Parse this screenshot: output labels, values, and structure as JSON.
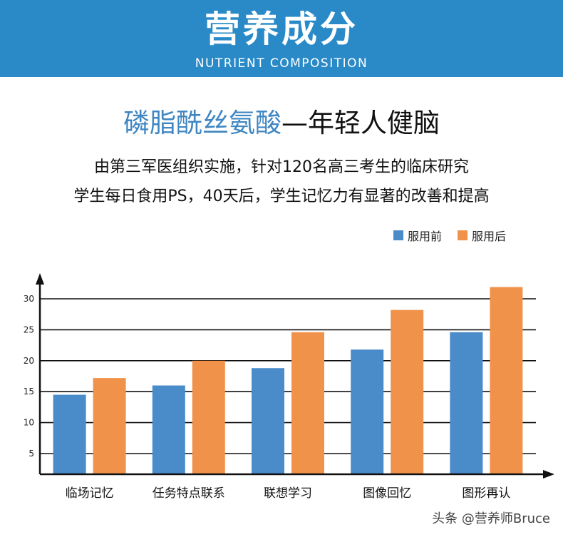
{
  "banner": {
    "title": "营养成分",
    "subtitle": "NUTRIENT COMPOSITION"
  },
  "headline": {
    "highlight": "磷脂酰丝氨酸",
    "rest": "—年轻人健脑"
  },
  "description": {
    "line1": "由第三军医组织实施，针对120名高三考生的临床研究",
    "line2": "学生每日食用PS，40天后，学生记忆力有显著的改善和提高"
  },
  "watermark": "头条 @营养师Bruce",
  "colors": {
    "banner": "#2a8ac7",
    "before": "#4a8bca",
    "after": "#f0924a"
  },
  "chart_data": {
    "type": "bar",
    "categories": [
      "临场记忆",
      "任务特点联系",
      "联想学习",
      "图像回忆",
      "图形再认"
    ],
    "series": [
      {
        "name": "服用前",
        "values": [
          14.5,
          16,
          18.8,
          21.8,
          24.6
        ]
      },
      {
        "name": "服用后",
        "values": [
          17.2,
          20,
          24.6,
          28.2,
          31.9
        ]
      }
    ],
    "yticks": [
      5,
      10,
      15,
      20,
      25,
      30
    ],
    "ylim": [
      1.5,
      33
    ],
    "grid": true,
    "legend": "top-right",
    "title": "",
    "xlabel": "",
    "ylabel": ""
  }
}
